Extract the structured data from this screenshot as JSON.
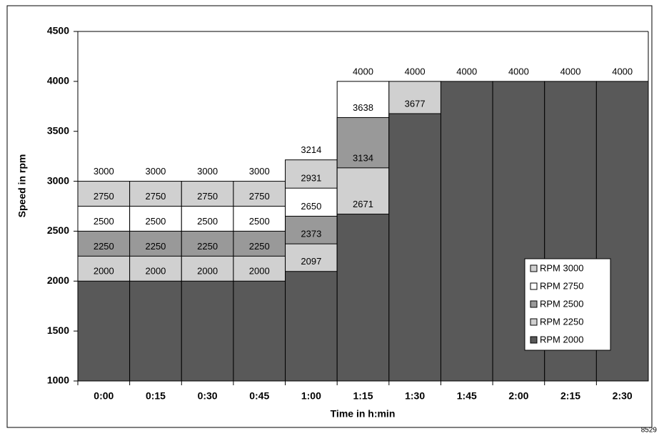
{
  "chart_data": {
    "type": "bar",
    "overlap": true,
    "categories": [
      "0:00",
      "0:15",
      "0:30",
      "0:45",
      "1:00",
      "1:15",
      "1:30",
      "1:45",
      "2:00",
      "2:15",
      "2:30"
    ],
    "series": [
      {
        "name": "RPM 3000",
        "color": "#d0d0d0",
        "values": [
          3000,
          3000,
          3000,
          3000,
          3214,
          null,
          null,
          null,
          null,
          null,
          null
        ]
      },
      {
        "name": "RPM 2750",
        "color": "#ffffff",
        "values": [
          2750,
          2750,
          2750,
          2750,
          2931,
          4000,
          null,
          null,
          null,
          null,
          null
        ]
      },
      {
        "name": "RPM 2500",
        "color": "#999999",
        "values": [
          2500,
          2500,
          2500,
          2500,
          2650,
          3638,
          null,
          null,
          null,
          null,
          null
        ]
      },
      {
        "name": "RPM 2250",
        "color": "#d0d0d0",
        "values": [
          2250,
          2250,
          2250,
          2250,
          2373,
          3134,
          4000,
          null,
          null,
          null,
          null
        ]
      },
      {
        "name": "RPM 2000",
        "color": "#595959",
        "values": [
          2000,
          2000,
          2000,
          2000,
          2097,
          2671,
          3677,
          4000,
          4000,
          4000,
          4000
        ]
      }
    ],
    "ylim": [
      1000,
      4500
    ],
    "yticks": [
      1000,
      1500,
      2000,
      2500,
      3000,
      3500,
      4000,
      4500
    ],
    "x_label": "Time in h:min",
    "y_label": "Speed in rpm",
    "footnote": "8529",
    "legend": "lower right"
  }
}
